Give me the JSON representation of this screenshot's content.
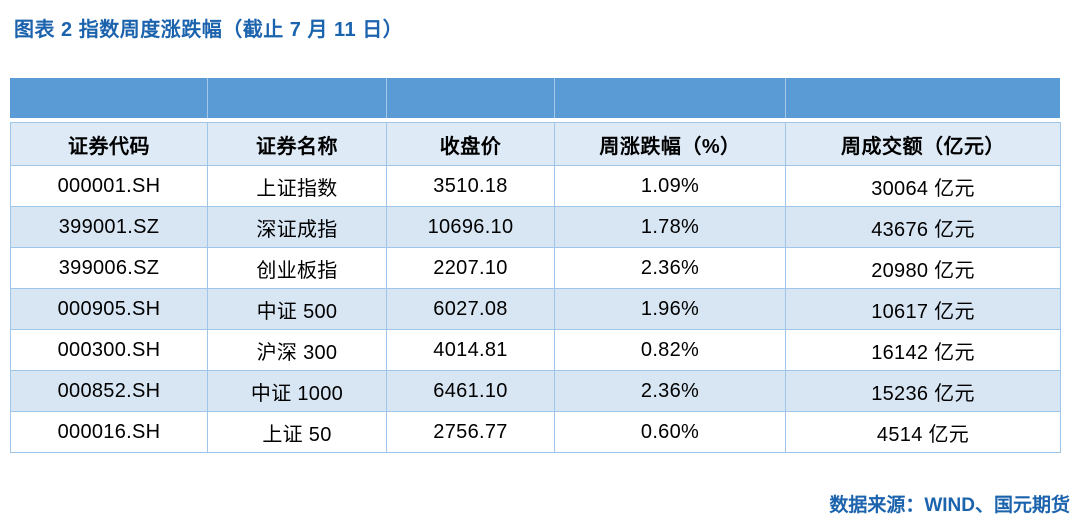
{
  "title": "图表 2 指数周度涨跌幅（截止 7 月 11 日）",
  "source": "数据来源：WIND、国元期货",
  "colors": {
    "accent_blue": "#1C63AE",
    "band_blue": "#5B9BD5",
    "header_bg": "#DEEAF6",
    "alt_row_bg": "#D8E6F4",
    "border": "#9FC5E8",
    "cell_text": "#000000"
  },
  "table": {
    "columns": [
      "证券代码",
      "证券名称",
      "收盘价",
      "周涨跌幅（%）",
      "周成交额（亿元）"
    ],
    "rows": [
      [
        "000001.SH",
        "上证指数",
        "3510.18",
        "1.09%",
        "30064 亿元"
      ],
      [
        "399001.SZ",
        "深证成指",
        "10696.10",
        "1.78%",
        "43676 亿元"
      ],
      [
        "399006.SZ",
        "创业板指",
        "2207.10",
        "2.36%",
        "20980 亿元"
      ],
      [
        "000905.SH",
        "中证 500",
        "6027.08",
        "1.96%",
        "10617 亿元"
      ],
      [
        "000300.SH",
        "沪深 300",
        "4014.81",
        "0.82%",
        "16142 亿元"
      ],
      [
        "000852.SH",
        "中证 1000",
        "6461.10",
        "2.36%",
        "15236 亿元"
      ],
      [
        "000016.SH",
        "上证 50",
        "2756.77",
        "0.60%",
        "4514 亿元"
      ]
    ]
  }
}
